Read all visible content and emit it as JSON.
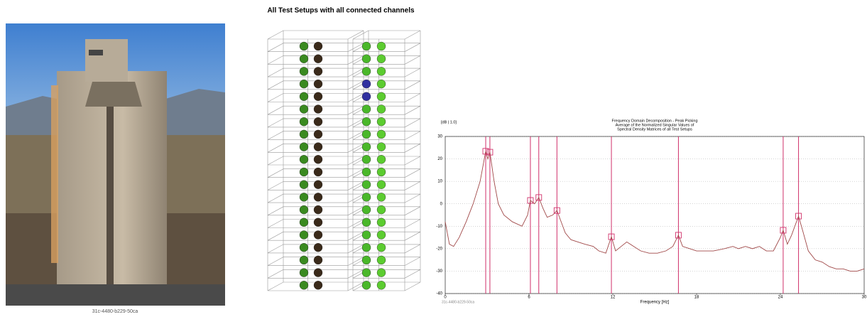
{
  "photo": {
    "caption": "31c-4480-b229-50ca"
  },
  "model": {
    "title": "All Test Setups with all connected channels"
  },
  "chart_data": {
    "type": "line",
    "title": [
      "Frequency Domain Decomposition - Peak Picking",
      "Average of the Normalized Singular Values of",
      "Spectral Density Matrices of all Test Setups"
    ],
    "ylabel": "[dB | 1.0]",
    "xlabel": "Frequency [Hz]",
    "footnote": "31c-4480-b229-50ca",
    "x": [
      0,
      0.3,
      0.6,
      1,
      1.5,
      2,
      2.5,
      2.9,
      3.05,
      3.2,
      3.5,
      3.8,
      4.2,
      4.8,
      5.5,
      5.9,
      6.1,
      6.4,
      6.7,
      7,
      7.3,
      7.7,
      8.0,
      8.3,
      8.6,
      9,
      9.5,
      10,
      10.6,
      11,
      11.5,
      11.9,
      12.2,
      12.6,
      13,
      13.5,
      14,
      14.6,
      15.2,
      15.8,
      16.3,
      16.7,
      17,
      17.5,
      18,
      18.6,
      19.2,
      20,
      20.6,
      21,
      21.5,
      22,
      22.5,
      23,
      23.5,
      24,
      24.2,
      24.5,
      24.8,
      25.3,
      25.6,
      26,
      26.5,
      27,
      27.5,
      28,
      28.5,
      29,
      29.5,
      30
    ],
    "series": [
      {
        "color": "#a04848",
        "values": [
          -8,
          -18,
          -19,
          -15,
          -8,
          0,
          10,
          23.4,
          20,
          23,
          10,
          0,
          -5,
          -8,
          -10,
          -5,
          1.5,
          0,
          2.8,
          -2,
          -6,
          -5,
          -3,
          -8,
          -13,
          -16,
          -17,
          -18,
          -19,
          -21,
          -22,
          -14.7,
          -21,
          -19,
          -17,
          -19,
          -21,
          -22,
          -22,
          -21,
          -19,
          -14,
          -19,
          -20,
          -21,
          -21,
          -21,
          -20,
          -19,
          -20,
          -19,
          -20,
          -19,
          -21,
          -21,
          -15,
          -11.8,
          -18,
          -14,
          -5.5,
          -12,
          -21,
          -25,
          -26,
          -28,
          -29,
          -29,
          -30,
          -30,
          -29
        ]
      }
    ],
    "peaks": {
      "color": "#d0306a",
      "x": [
        2.9,
        3.2,
        6.1,
        6.7,
        8.0,
        11.9,
        16.7,
        24.2,
        25.3
      ],
      "values": [
        23.4,
        23,
        1.5,
        2.8,
        -3,
        -14.7,
        -14,
        -11.8,
        -5.5
      ]
    },
    "xlim": [
      0,
      30
    ],
    "ylim": [
      -40,
      30
    ],
    "xticks": [
      0,
      6,
      12,
      18,
      24,
      30
    ],
    "yticks": [
      -40,
      -30,
      -20,
      -10,
      0,
      10,
      20,
      30
    ],
    "grid": true
  }
}
